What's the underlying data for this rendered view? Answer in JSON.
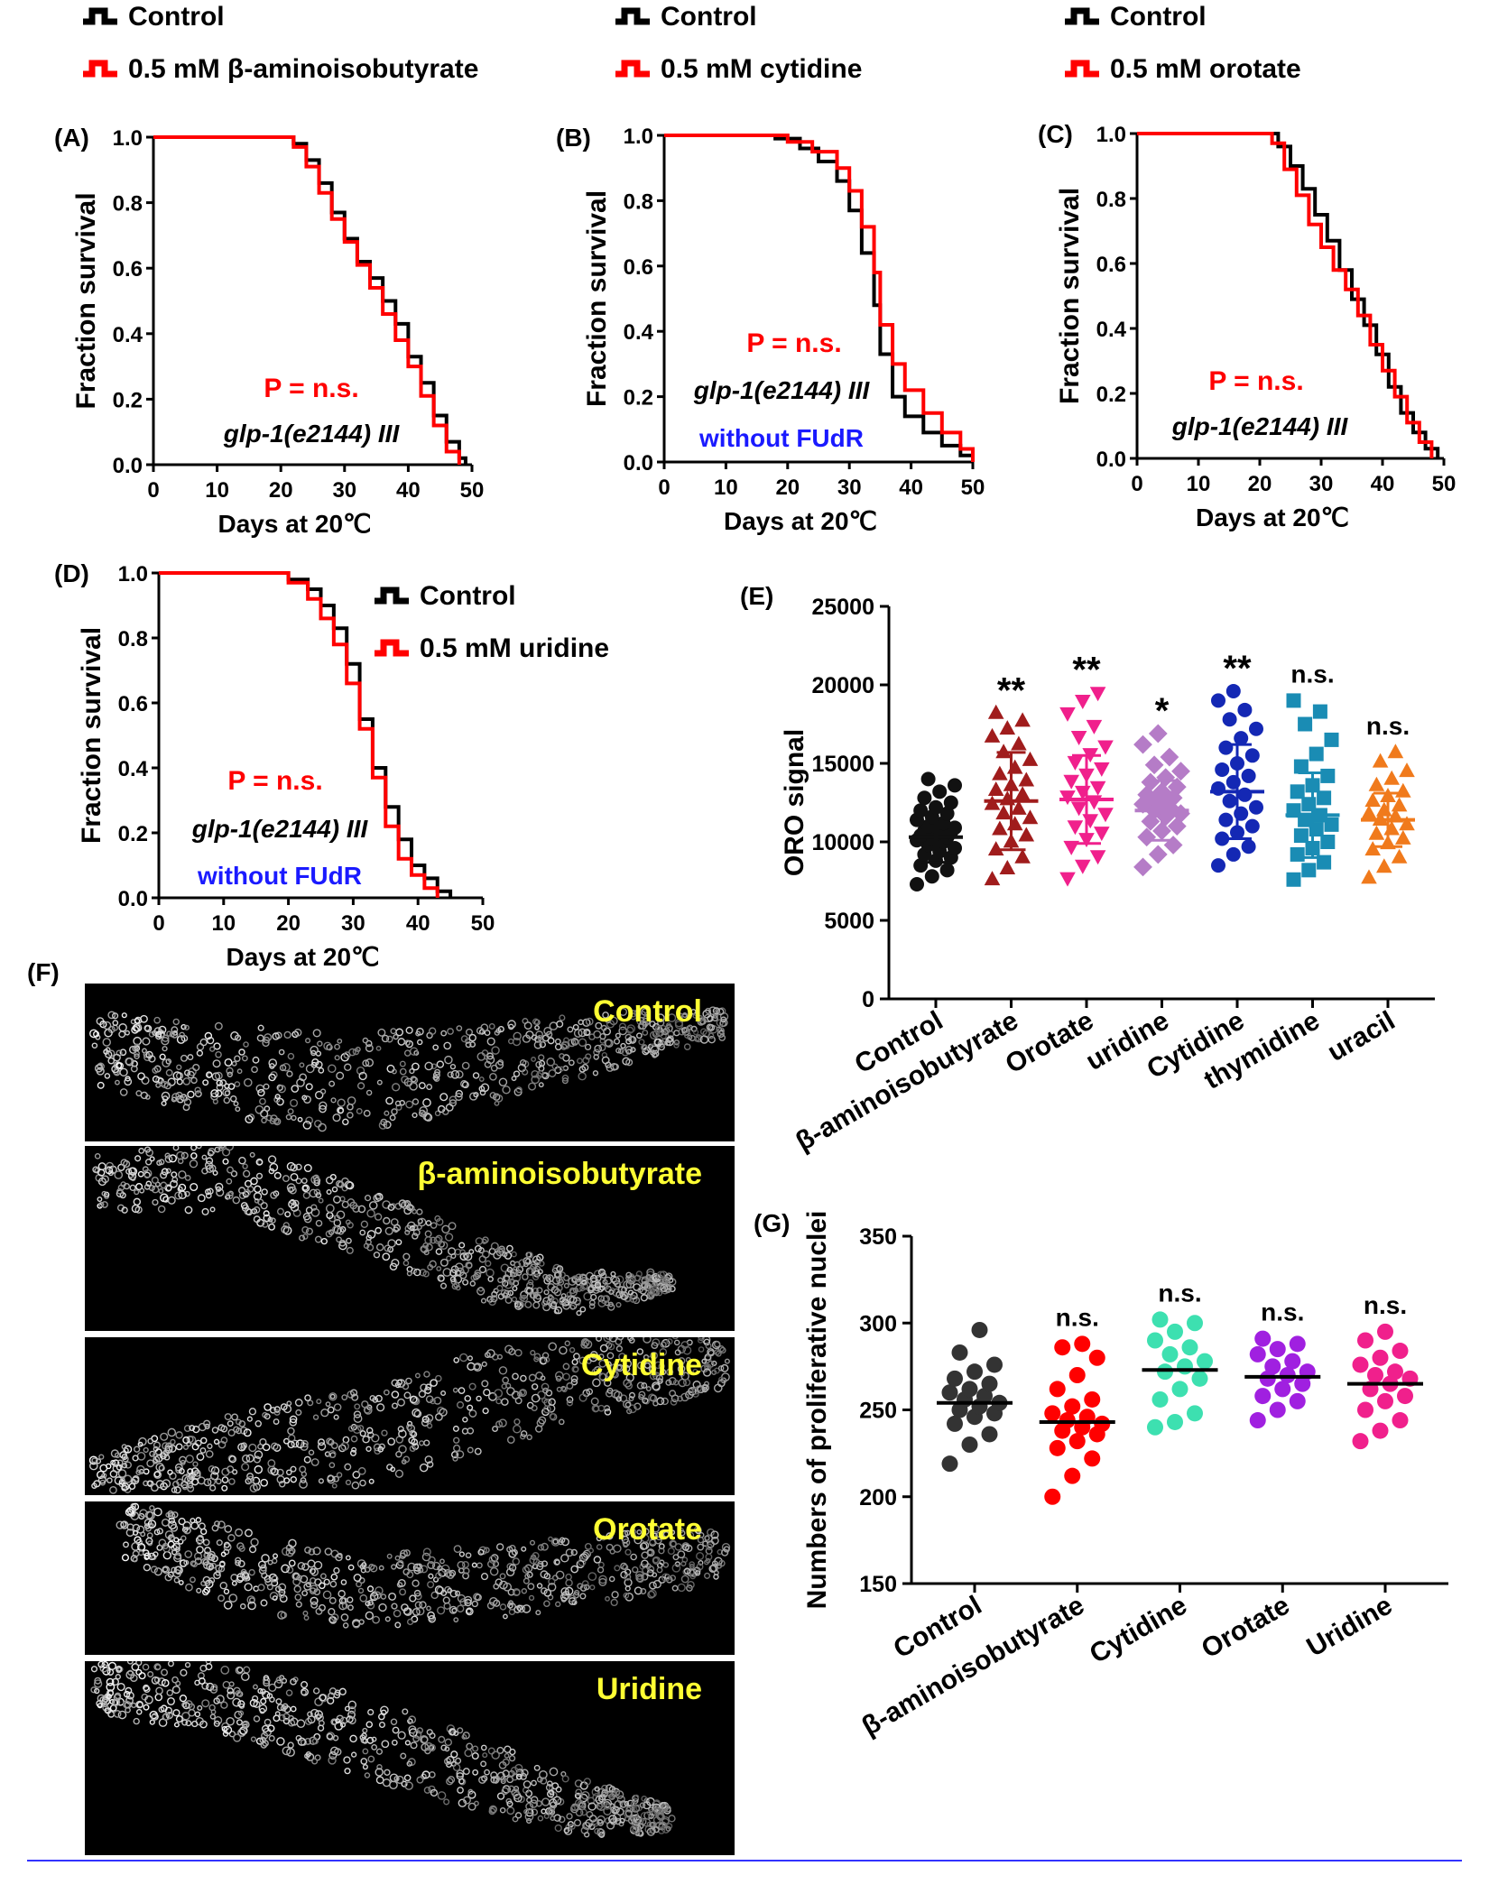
{
  "colors": {
    "control": "#000000",
    "treated": "#ff0000",
    "annotation_p": "#ff0000",
    "annotation_fudr": "#1a1aff",
    "microscopy_label": "#ffff33"
  },
  "panel_f": {
    "label": "(F)",
    "images": [
      {
        "label": "Control"
      },
      {
        "label": "β-aminoisobutyrate"
      },
      {
        "label": "Cytidine"
      },
      {
        "label": "Orotate"
      },
      {
        "label": "Uridine"
      }
    ]
  },
  "chart_data": [
    {
      "panel": "(A)",
      "type": "line",
      "xlabel": "Days at 20℃",
      "ylabel": "Fraction survival",
      "xlim": [
        0,
        50
      ],
      "ylim": [
        0,
        1.0
      ],
      "xticks": [
        "0",
        "10",
        "20",
        "30",
        "40",
        "50"
      ],
      "yticks": [
        "0.0",
        "0.2",
        "0.4",
        "0.6",
        "0.8",
        "1.0"
      ],
      "legend": [
        "Control",
        "0.5 mM β-aminoisobutyrate"
      ],
      "legend_position": "top",
      "annotations": [
        "P = n.s.",
        "glp-1(e2144) III"
      ],
      "series": [
        {
          "name": "Control",
          "color": "#000000",
          "points": [
            [
              0,
              1.0
            ],
            [
              20,
              1.0
            ],
            [
              22,
              0.98
            ],
            [
              24,
              0.93
            ],
            [
              26,
              0.86
            ],
            [
              28,
              0.77
            ],
            [
              30,
              0.69
            ],
            [
              32,
              0.62
            ],
            [
              34,
              0.57
            ],
            [
              36,
              0.5
            ],
            [
              38,
              0.43
            ],
            [
              40,
              0.33
            ],
            [
              42,
              0.25
            ],
            [
              44,
              0.15
            ],
            [
              46,
              0.07
            ],
            [
              48,
              0.02
            ],
            [
              49,
              0.0
            ]
          ]
        },
        {
          "name": "0.5 mM β-aminoisobutyrate",
          "color": "#ff0000",
          "points": [
            [
              0,
              1.0
            ],
            [
              21,
              1.0
            ],
            [
              22,
              0.97
            ],
            [
              24,
              0.91
            ],
            [
              26,
              0.83
            ],
            [
              28,
              0.75
            ],
            [
              30,
              0.68
            ],
            [
              32,
              0.61
            ],
            [
              34,
              0.54
            ],
            [
              36,
              0.46
            ],
            [
              38,
              0.38
            ],
            [
              40,
              0.3
            ],
            [
              42,
              0.21
            ],
            [
              44,
              0.12
            ],
            [
              46,
              0.04
            ],
            [
              48,
              0.0
            ]
          ]
        }
      ]
    },
    {
      "panel": "(B)",
      "type": "line",
      "xlabel": "Days at 20℃",
      "ylabel": "Fraction survival",
      "xlim": [
        0,
        50
      ],
      "ylim": [
        0,
        1.0
      ],
      "xticks": [
        "0",
        "10",
        "20",
        "30",
        "40",
        "50"
      ],
      "yticks": [
        "0.0",
        "0.2",
        "0.4",
        "0.6",
        "0.8",
        "1.0"
      ],
      "legend": [
        "Control",
        "0.5 mM cytidine"
      ],
      "legend_position": "top",
      "annotations": [
        "P = n.s.",
        "glp-1(e2144) III",
        "without FUdR"
      ],
      "series": [
        {
          "name": "Control",
          "color": "#000000",
          "points": [
            [
              0,
              1.0
            ],
            [
              12,
              1.0
            ],
            [
              18,
              0.99
            ],
            [
              22,
              0.96
            ],
            [
              25,
              0.92
            ],
            [
              28,
              0.86
            ],
            [
              30,
              0.77
            ],
            [
              32,
              0.64
            ],
            [
              34,
              0.48
            ],
            [
              35,
              0.33
            ],
            [
              37,
              0.2
            ],
            [
              39,
              0.14
            ],
            [
              42,
              0.09
            ],
            [
              45,
              0.05
            ],
            [
              48,
              0.02
            ],
            [
              50,
              0.0
            ]
          ]
        },
        {
          "name": "0.5 mM cytidine",
          "color": "#ff0000",
          "points": [
            [
              0,
              1.0
            ],
            [
              15,
              1.0
            ],
            [
              20,
              0.98
            ],
            [
              24,
              0.95
            ],
            [
              28,
              0.9
            ],
            [
              30,
              0.83
            ],
            [
              32,
              0.72
            ],
            [
              34,
              0.58
            ],
            [
              35,
              0.42
            ],
            [
              37,
              0.3
            ],
            [
              39,
              0.22
            ],
            [
              42,
              0.15
            ],
            [
              45,
              0.09
            ],
            [
              48,
              0.04
            ],
            [
              50,
              0.0
            ]
          ]
        }
      ]
    },
    {
      "panel": "(C)",
      "type": "line",
      "xlabel": "Days at 20℃",
      "ylabel": "Fraction survival",
      "xlim": [
        0,
        50
      ],
      "ylim": [
        0,
        1.0
      ],
      "xticks": [
        "0",
        "10",
        "20",
        "30",
        "40",
        "50"
      ],
      "yticks": [
        "0.0",
        "0.2",
        "0.4",
        "0.6",
        "0.8",
        "1.0"
      ],
      "legend": [
        "Control",
        "0.5 mM orotate"
      ],
      "legend_position": "top",
      "annotations": [
        "P = n.s.",
        "glp-1(e2144) III"
      ],
      "series": [
        {
          "name": "Control",
          "color": "#000000",
          "points": [
            [
              0,
              1.0
            ],
            [
              20,
              1.0
            ],
            [
              23,
              0.96
            ],
            [
              25,
              0.9
            ],
            [
              27,
              0.83
            ],
            [
              29,
              0.75
            ],
            [
              31,
              0.67
            ],
            [
              33,
              0.58
            ],
            [
              35,
              0.49
            ],
            [
              37,
              0.41
            ],
            [
              39,
              0.32
            ],
            [
              41,
              0.22
            ],
            [
              43,
              0.14
            ],
            [
              45,
              0.08
            ],
            [
              47,
              0.03
            ],
            [
              49,
              0.0
            ]
          ]
        },
        {
          "name": "0.5 mM orotate",
          "color": "#ff0000",
          "points": [
            [
              0,
              1.0
            ],
            [
              20,
              1.0
            ],
            [
              22,
              0.97
            ],
            [
              24,
              0.89
            ],
            [
              26,
              0.81
            ],
            [
              28,
              0.72
            ],
            [
              30,
              0.65
            ],
            [
              32,
              0.58
            ],
            [
              34,
              0.52
            ],
            [
              36,
              0.44
            ],
            [
              38,
              0.35
            ],
            [
              40,
              0.27
            ],
            [
              42,
              0.19
            ],
            [
              44,
              0.11
            ],
            [
              46,
              0.05
            ],
            [
              48,
              0.0
            ]
          ]
        }
      ]
    },
    {
      "panel": "(D)",
      "type": "line",
      "xlabel": "Days at 20℃",
      "ylabel": "Fraction survival",
      "xlim": [
        0,
        50
      ],
      "ylim": [
        0,
        1.0
      ],
      "xticks": [
        "0",
        "10",
        "20",
        "30",
        "40",
        "50"
      ],
      "yticks": [
        "0.0",
        "0.2",
        "0.4",
        "0.6",
        "0.8",
        "1.0"
      ],
      "legend": [
        "Control",
        "0.5 mM uridine"
      ],
      "legend_position": "top-right",
      "annotations": [
        "P = n.s.",
        "glp-1(e2144) III",
        "without FUdR"
      ],
      "series": [
        {
          "name": "Control",
          "color": "#000000",
          "points": [
            [
              0,
              1.0
            ],
            [
              17,
              1.0
            ],
            [
              20,
              0.98
            ],
            [
              23,
              0.95
            ],
            [
              25,
              0.9
            ],
            [
              27,
              0.83
            ],
            [
              29,
              0.72
            ],
            [
              31,
              0.55
            ],
            [
              33,
              0.4
            ],
            [
              35,
              0.28
            ],
            [
              37,
              0.18
            ],
            [
              39,
              0.1
            ],
            [
              41,
              0.06
            ],
            [
              43,
              0.02
            ],
            [
              45,
              0.0
            ]
          ]
        },
        {
          "name": "0.5 mM uridine",
          "color": "#ff0000",
          "points": [
            [
              0,
              1.0
            ],
            [
              17,
              1.0
            ],
            [
              20,
              0.97
            ],
            [
              23,
              0.92
            ],
            [
              25,
              0.86
            ],
            [
              27,
              0.78
            ],
            [
              29,
              0.66
            ],
            [
              31,
              0.52
            ],
            [
              33,
              0.37
            ],
            [
              35,
              0.22
            ],
            [
              37,
              0.12
            ],
            [
              39,
              0.07
            ],
            [
              41,
              0.03
            ],
            [
              43,
              0.0
            ]
          ]
        }
      ]
    },
    {
      "panel": "(E)",
      "type": "scatter",
      "ylabel": "ORO signal",
      "ylim": [
        0,
        25000
      ],
      "yticks": [
        "0",
        "5000",
        "10000",
        "15000",
        "20000",
        "25000"
      ],
      "categories": [
        "Control",
        "β-aminoisobutyrate",
        "Orotate",
        "uridine",
        "Cytidine",
        "thymidine",
        "uracil"
      ],
      "marker_shapes": [
        "circle",
        "triangle-up",
        "triangle-down",
        "diamond",
        "circle",
        "square",
        "triangle-up"
      ],
      "colors": [
        "#111111",
        "#a01c1c",
        "#f0208c",
        "#b57cc7",
        "#1428b4",
        "#1a8cb4",
        "#f07a1c"
      ],
      "significance": [
        "",
        "**",
        "**",
        "*",
        "**",
        "n.s.",
        "n.s."
      ],
      "mean": [
        10300,
        12600,
        12700,
        12000,
        13200,
        11700,
        11400
      ],
      "sd": [
        1600,
        3100,
        2800,
        1900,
        3000,
        2700,
        1700
      ],
      "values": [
        [
          7300,
          7800,
          8200,
          8500,
          8800,
          9000,
          9200,
          9400,
          9600,
          9800,
          10000,
          10100,
          10200,
          10300,
          10400,
          10500,
          10600,
          10700,
          10800,
          10900,
          11000,
          11200,
          11400,
          11600,
          11800,
          12000,
          12200,
          12500,
          12800,
          13200,
          13600,
          14000
        ],
        [
          7600,
          8300,
          9000,
          9500,
          10000,
          10400,
          10800,
          11100,
          11500,
          11800,
          12100,
          12400,
          12700,
          13000,
          13300,
          13600,
          13900,
          14300,
          14700,
          15200,
          15700,
          16200,
          16700,
          17200,
          17700,
          18200
        ],
        [
          7700,
          8500,
          9100,
          9700,
          10200,
          10600,
          11000,
          11400,
          11800,
          12200,
          12600,
          12900,
          13200,
          13500,
          13900,
          14300,
          14700,
          15100,
          15600,
          16100,
          16700,
          17400,
          18200,
          19000,
          19500
        ],
        [
          8400,
          9200,
          9800,
          10300,
          10700,
          11000,
          11300,
          11600,
          11800,
          12000,
          12200,
          12400,
          12600,
          12800,
          13000,
          13200,
          13500,
          13800,
          14100,
          14500,
          14900,
          15400,
          16200,
          16900
        ],
        [
          8500,
          9200,
          9700,
          10200,
          10600,
          11000,
          11400,
          11800,
          12200,
          12600,
          13000,
          13400,
          13800,
          14200,
          14600,
          15000,
          15500,
          16000,
          16600,
          17200,
          17800,
          18400,
          19000,
          19600
        ],
        [
          7600,
          8200,
          8700,
          9200,
          9600,
          10000,
          10400,
          10800,
          11100,
          11400,
          11700,
          12000,
          12400,
          12800,
          13200,
          13600,
          14200,
          14800,
          15600,
          16500,
          17500,
          18300,
          19000
        ],
        [
          7700,
          8400,
          9000,
          9500,
          9900,
          10200,
          10500,
          10800,
          11100,
          11400,
          11600,
          11800,
          12000,
          12300,
          12600,
          12900,
          13200,
          13600,
          14000,
          14500,
          15100,
          15700
        ]
      ]
    },
    {
      "panel": "(G)",
      "type": "scatter",
      "ylabel": "Numbers of proliferative nuclei",
      "ylim": [
        150,
        350
      ],
      "yticks": [
        "150",
        "200",
        "250",
        "300",
        "350"
      ],
      "categories": [
        "Control",
        "β-aminoisobutyrate",
        "Cytidine",
        "Orotate",
        "Uridine"
      ],
      "colors": [
        "#333333",
        "#ff0000",
        "#3de0b0",
        "#a020e0",
        "#f0208c"
      ],
      "significance": [
        "",
        "n.s.",
        "n.s.",
        "n.s.",
        "n.s."
      ],
      "mean": [
        254,
        243,
        273,
        269,
        265
      ],
      "values": [
        [
          219,
          230,
          236,
          242,
          246,
          248,
          250,
          252,
          254,
          256,
          258,
          260,
          262,
          265,
          268,
          272,
          276,
          283,
          296
        ],
        [
          200,
          212,
          222,
          228,
          232,
          236,
          238,
          240,
          242,
          244,
          246,
          248,
          252,
          256,
          262,
          270,
          280,
          286,
          288
        ],
        [
          240,
          243,
          248,
          256,
          262,
          268,
          272,
          275,
          278,
          282,
          286,
          290,
          295,
          300,
          302
        ],
        [
          244,
          250,
          255,
          258,
          262,
          265,
          268,
          270,
          272,
          275,
          278,
          282,
          285,
          288,
          291
        ],
        [
          232,
          238,
          244,
          250,
          255,
          258,
          262,
          265,
          268,
          270,
          272,
          276,
          280,
          284,
          290,
          295
        ]
      ]
    }
  ]
}
